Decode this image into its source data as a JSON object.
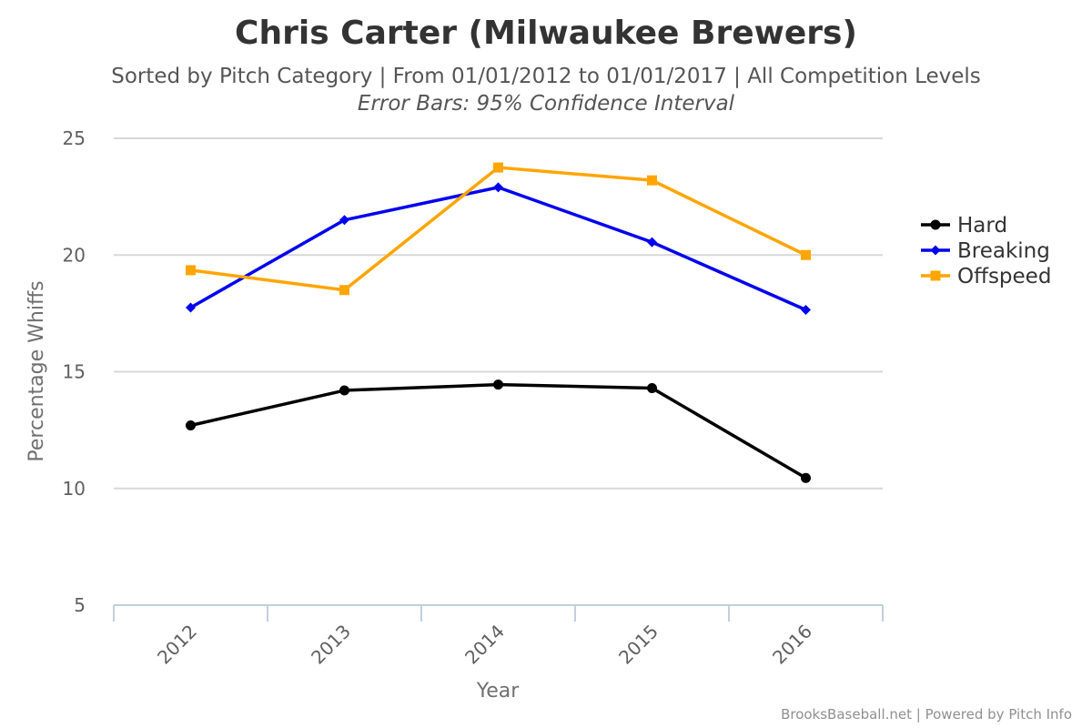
{
  "chart_data": {
    "type": "line",
    "title": "Chris Carter (Milwaukee Brewers)",
    "subtitle": "Sorted by Pitch Category | From 01/01/2012 to 01/01/2017 | All Competition Levels",
    "subtitle2": "Error Bars: 95% Confidence Interval",
    "xlabel": "Year",
    "ylabel": "Percentage Whiffs",
    "categories": [
      "2012",
      "2013",
      "2014",
      "2015",
      "2016"
    ],
    "ylim": [
      5,
      25
    ],
    "yticks": [
      "5",
      "10",
      "15",
      "20",
      "25"
    ],
    "grid": true,
    "legend_position": "right",
    "series": [
      {
        "name": "Hard",
        "color": "#000000",
        "marker": "circle",
        "values": [
          12.7,
          14.2,
          14.45,
          14.3,
          10.45
        ]
      },
      {
        "name": "Breaking",
        "color": "#0000ee",
        "marker": "diamond",
        "values": [
          17.75,
          21.5,
          22.9,
          20.55,
          17.65
        ]
      },
      {
        "name": "Offspeed",
        "color": "#ffa500",
        "marker": "square",
        "values": [
          19.35,
          18.5,
          23.75,
          23.2,
          20.0
        ]
      }
    ]
  },
  "credits": "BrooksBaseball.net | Powered by Pitch Info"
}
